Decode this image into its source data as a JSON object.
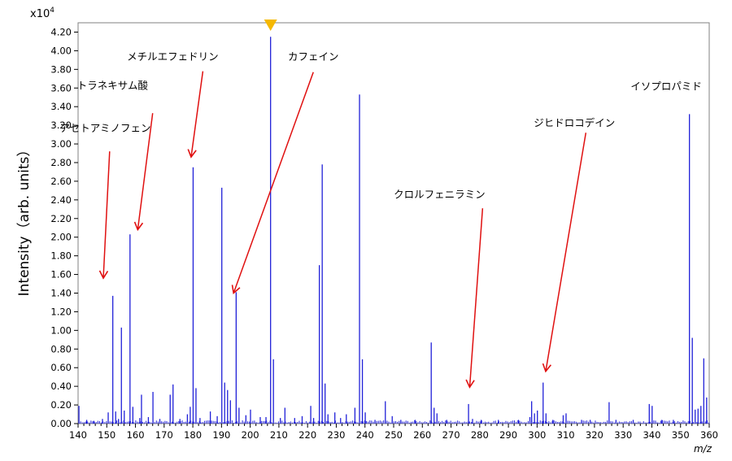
{
  "chart_data": {
    "type": "bar",
    "title": "",
    "xlabel": "m/z",
    "ylabel": "Intensity（arb. units）",
    "multiplier": "x10",
    "multiplier_exp": "4",
    "xlim": [
      140,
      360
    ],
    "ylim": [
      0,
      4.3
    ],
    "x_ticks": [
      "140",
      "150",
      "160",
      "170",
      "180",
      "190",
      "200",
      "210",
      "220",
      "230",
      "240",
      "250",
      "260",
      "270",
      "280",
      "290",
      "300",
      "310",
      "320",
      "330",
      "340",
      "350",
      "360"
    ],
    "y_ticks": [
      "0.00",
      "0.20",
      "0.40",
      "0.60",
      "0.80",
      "1.00",
      "1.20",
      "1.40",
      "1.60",
      "1.80",
      "2.00",
      "2.20",
      "2.40",
      "2.60",
      "2.80",
      "3.00",
      "3.20",
      "3.40",
      "3.60",
      "3.80",
      "4.00",
      "4.20"
    ],
    "colors": {
      "peaks": "#2020d8",
      "arrows": "#e01010",
      "marker": "#f5b800",
      "frame": "#808080"
    },
    "marker_x": 207.1,
    "series": [
      {
        "values": [
          [
            140.3,
            0.19
          ],
          [
            143,
            0.04
          ],
          [
            145.5,
            0.03
          ],
          [
            148.5,
            0.05
          ],
          [
            150.5,
            0.12
          ],
          [
            152.1,
            1.37
          ],
          [
            153.1,
            0.13
          ],
          [
            154.1,
            0.05
          ],
          [
            155.1,
            1.03
          ],
          [
            156.1,
            0.14
          ],
          [
            158.1,
            2.03
          ],
          [
            159.1,
            0.18
          ],
          [
            161.5,
            0.06
          ],
          [
            162.1,
            0.31
          ],
          [
            164.5,
            0.07
          ],
          [
            166.1,
            0.34
          ],
          [
            168.5,
            0.05
          ],
          [
            172.1,
            0.31
          ],
          [
            173.1,
            0.42
          ],
          [
            175.5,
            0.05
          ],
          [
            178.1,
            0.1
          ],
          [
            179.1,
            0.18
          ],
          [
            180.1,
            2.75
          ],
          [
            181.1,
            0.38
          ],
          [
            182.5,
            0.06
          ],
          [
            186.1,
            0.13
          ],
          [
            188.5,
            0.08
          ],
          [
            190.1,
            2.53
          ],
          [
            191.1,
            0.44
          ],
          [
            192.1,
            0.36
          ],
          [
            193.1,
            0.25
          ],
          [
            195.1,
            1.41
          ],
          [
            196.1,
            0.17
          ],
          [
            198.5,
            0.09
          ],
          [
            200.1,
            0.15
          ],
          [
            203.5,
            0.07
          ],
          [
            205.5,
            0.07
          ],
          [
            207.1,
            4.15
          ],
          [
            208.1,
            0.69
          ],
          [
            210.5,
            0.06
          ],
          [
            212.1,
            0.17
          ],
          [
            215.5,
            0.06
          ],
          [
            218.1,
            0.08
          ],
          [
            221.1,
            0.19
          ],
          [
            222.1,
            0.06
          ],
          [
            224.1,
            1.7
          ],
          [
            225.1,
            2.78
          ],
          [
            226.1,
            0.43
          ],
          [
            227.1,
            0.1
          ],
          [
            229.5,
            0.12
          ],
          [
            231.5,
            0.06
          ],
          [
            233.5,
            0.1
          ],
          [
            236.5,
            0.17
          ],
          [
            238.1,
            3.53
          ],
          [
            239.1,
            0.69
          ],
          [
            240.1,
            0.12
          ],
          [
            243.5,
            0.04
          ],
          [
            247.1,
            0.24
          ],
          [
            249.5,
            0.08
          ],
          [
            252.5,
            0.04
          ],
          [
            257.5,
            0.04
          ],
          [
            263.1,
            0.87
          ],
          [
            264.1,
            0.17
          ],
          [
            265.1,
            0.11
          ],
          [
            268.5,
            0.04
          ],
          [
            276.1,
            0.21
          ],
          [
            277.5,
            0.05
          ],
          [
            280.5,
            0.04
          ],
          [
            286.5,
            0.04
          ],
          [
            293.5,
            0.04
          ],
          [
            297.5,
            0.07
          ],
          [
            298.1,
            0.24
          ],
          [
            299.1,
            0.11
          ],
          [
            300.1,
            0.14
          ],
          [
            302.1,
            0.44
          ],
          [
            303.1,
            0.11
          ],
          [
            305.5,
            0.04
          ],
          [
            309.1,
            0.09
          ],
          [
            310.1,
            0.11
          ],
          [
            315.5,
            0.04
          ],
          [
            318.5,
            0.04
          ],
          [
            325.1,
            0.23
          ],
          [
            327.5,
            0.04
          ],
          [
            333.5,
            0.04
          ],
          [
            339.1,
            0.21
          ],
          [
            340.1,
            0.19
          ],
          [
            343.5,
            0.04
          ],
          [
            347.5,
            0.04
          ],
          [
            353.1,
            3.32
          ],
          [
            354.1,
            0.92
          ],
          [
            355.1,
            0.15
          ],
          [
            356.1,
            0.16
          ],
          [
            357.1,
            0.19
          ],
          [
            358.1,
            0.7
          ],
          [
            359.1,
            0.28
          ]
        ]
      }
    ],
    "annotations": [
      {
        "label": "アセトアミノフェン",
        "label_x": 149.5,
        "label_y": 3.13,
        "from_x": 151.0,
        "from_y": 2.92,
        "to_x": 148.8,
        "to_y": 1.56
      },
      {
        "label": "トラネキサム酸",
        "label_x": 152.0,
        "label_y": 3.59,
        "from_x": 166.0,
        "from_y": 3.33,
        "to_x": 160.8,
        "to_y": 2.08
      },
      {
        "label": "メチルエフェドリン",
        "label_x": 173.0,
        "label_y": 3.9,
        "from_x": 183.5,
        "from_y": 3.78,
        "to_x": 179.4,
        "to_y": 2.86
      },
      {
        "label": "カフェイン",
        "label_x": 222.0,
        "label_y": 3.9,
        "from_x": 222.0,
        "from_y": 3.77,
        "to_x": 194.2,
        "to_y": 1.4
      },
      {
        "label": "イソプロパミド",
        "label_x": 345.0,
        "label_y": 3.58,
        "from_x": 0,
        "from_y": 0,
        "to_x": 0,
        "to_y": 0
      },
      {
        "label": "ジヒドロコデイン",
        "label_x": 313.0,
        "label_y": 3.19,
        "from_x": 317.0,
        "from_y": 3.12,
        "to_x": 303.0,
        "to_y": 0.56
      },
      {
        "label": "クロルフェニラミン",
        "label_x": 266.0,
        "label_y": 2.42,
        "from_x": 281.0,
        "from_y": 2.31,
        "to_x": 276.5,
        "to_y": 0.39
      }
    ]
  }
}
